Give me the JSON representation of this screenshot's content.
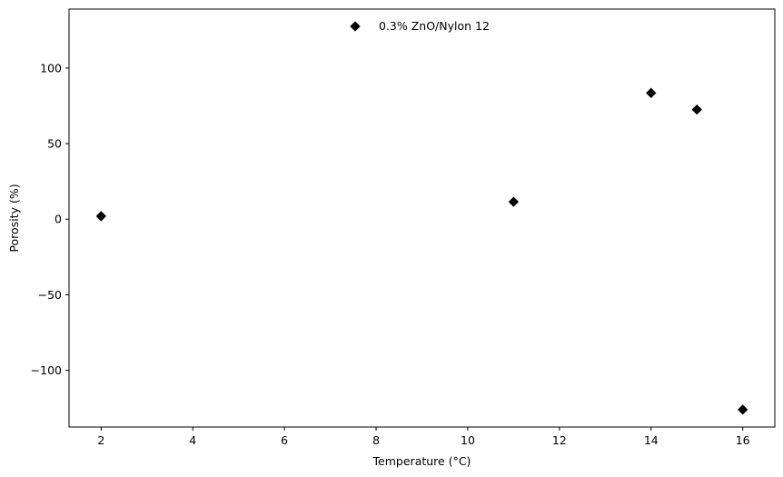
{
  "chart_data": {
    "type": "scatter",
    "xlabel": "Temperature (°C)",
    "ylabel": "Porosity (%)",
    "xlim": [
      1.3,
      16.7
    ],
    "ylim": [
      -137.5,
      139
    ],
    "xticks": [
      2,
      4,
      6,
      8,
      10,
      12,
      14,
      16
    ],
    "yticks": [
      100,
      50,
      0,
      -50,
      -100
    ],
    "ytick_labels": [
      "100",
      "50",
      "0",
      "−50",
      "−100"
    ],
    "grid": false,
    "legend_position": "top-center",
    "series": [
      {
        "name": "0.3% ZnO/Nylon 12",
        "marker": "diamond",
        "color": "#000000",
        "x": [
          2,
          11,
          14,
          15,
          16
        ],
        "y": [
          2,
          11.5,
          83.5,
          72.5,
          -126
        ]
      }
    ]
  }
}
